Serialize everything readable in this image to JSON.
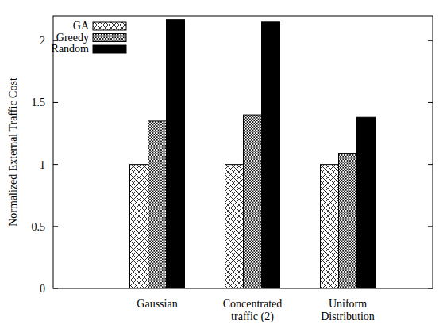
{
  "chart_data": {
    "type": "bar",
    "y_label": "Normalized External Traffic Cost",
    "categories": [
      "Gaussian",
      "Concentrated\ntraffic (2)",
      "Uniform\nDistribution"
    ],
    "series": [
      {
        "name": "GA",
        "color": "#000000",
        "values": [
          1.0,
          1.0,
          1.0
        ]
      },
      {
        "name": "Greedy",
        "color": "#000000",
        "values": [
          1.35,
          1.4,
          1.09
        ]
      },
      {
        "name": "Random",
        "color": "#000000",
        "values": [
          2.17,
          2.15,
          1.38
        ]
      }
    ],
    "ylim": [
      0,
      2.2
    ],
    "yticks": [
      0,
      0.5,
      1,
      1.5,
      2
    ],
    "legend": "top-left",
    "grid": false
  }
}
